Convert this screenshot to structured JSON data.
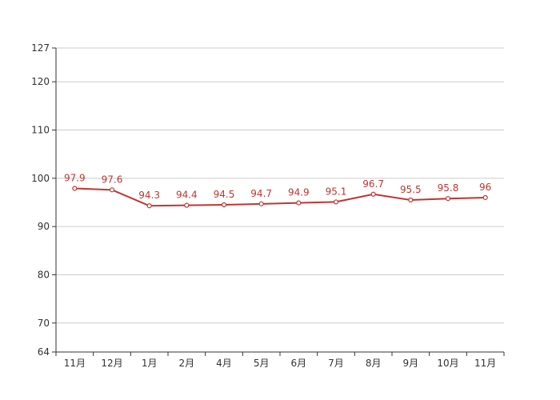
{
  "chart_data": {
    "type": "line",
    "title": "",
    "xlabel": "",
    "ylabel": "",
    "categories": [
      "11月",
      "12月",
      "1月",
      "2月",
      "4月",
      "5月",
      "6月",
      "7月",
      "8月",
      "9月",
      "10月",
      "11月"
    ],
    "series": [
      {
        "values": [
          97.9,
          97.6,
          94.3,
          94.4,
          94.5,
          94.7,
          94.9,
          95.1,
          96.7,
          95.5,
          95.8,
          96
        ]
      }
    ],
    "data_labels": [
      "97.9",
      "97.6",
      "94.3",
      "94.4",
      "94.5",
      "94.7",
      "94.9",
      "95.1",
      "96.7",
      "95.5",
      "95.8",
      "96"
    ],
    "ylim": [
      64,
      127
    ],
    "yticks": [
      64,
      70,
      80,
      90,
      100,
      110,
      120,
      127
    ],
    "ytick_labels": [
      "64",
      "70",
      "80",
      "90",
      "100",
      "110",
      "120",
      "127"
    ],
    "grid": true,
    "legend": "none",
    "colors": {
      "line": "#c23531",
      "marker_fill": "#ffffff",
      "grid": "#cccccc",
      "axis": "#333333",
      "text": "#333333"
    }
  }
}
